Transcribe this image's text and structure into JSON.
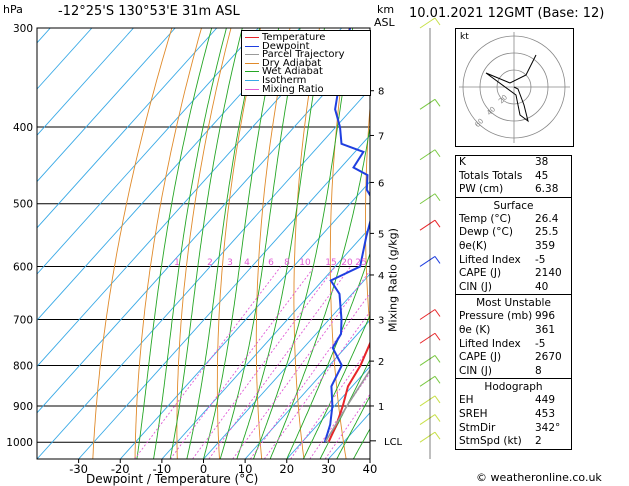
{
  "header": {
    "pressure_unit": "hPa",
    "location": "-12°25'S  130°53'E  31m  ASL",
    "km_label": "km",
    "asl_label": "ASL",
    "date_label": "10.01.2021  12GMT  (Base: 12)"
  },
  "chart_data": {
    "type": "line",
    "xlabel": "Dewpoint / Temperature (°C)",
    "ylabel": "",
    "mixing_ratio_label": "Mixing Ratio (g/kg)",
    "x_ticks": [
      -30,
      -20,
      -10,
      0,
      10,
      20,
      30,
      40
    ],
    "xlim": [
      -40,
      40
    ],
    "y_ticks": [
      300,
      400,
      500,
      600,
      700,
      800,
      900,
      1000
    ],
    "ylim": [
      1050,
      300
    ],
    "y_scale": "log",
    "skew": true,
    "km_ticks": [
      {
        "label": "8",
        "p": 360
      },
      {
        "label": "7",
        "p": 410
      },
      {
        "label": "6",
        "p": 470
      },
      {
        "label": "5",
        "p": 545
      },
      {
        "label": "4",
        "p": 615
      },
      {
        "label": "3",
        "p": 700
      },
      {
        "label": "2",
        "p": 790
      },
      {
        "label": "1",
        "p": 900
      }
    ],
    "lcl_label": "LCL",
    "lcl_pressure": 996,
    "mixing_ratio_values": [
      "1",
      "2",
      "3",
      "4",
      "6",
      "8",
      "10",
      "15",
      "20",
      "25"
    ],
    "legend": [
      {
        "name": "Temperature",
        "color": "#e8262a"
      },
      {
        "name": "Dewpoint",
        "color": "#1f3fe0"
      },
      {
        "name": "Parcel Trajectory",
        "color": "#9a9a9a"
      },
      {
        "name": "Dry Adiabat",
        "color": "#e08a2a"
      },
      {
        "name": "Wet Adiabat",
        "color": "#25a625"
      },
      {
        "name": "Isotherm",
        "color": "#38a9e6"
      },
      {
        "name": "Mixing Ratio",
        "color": "#e05bd5"
      }
    ],
    "series": [
      {
        "name": "Temperature",
        "color": "#e8262a",
        "points": [
          [
            26.4,
            1000
          ],
          [
            24.5,
            950
          ],
          [
            22,
            900
          ],
          [
            19,
            850
          ],
          [
            17.5,
            800
          ],
          [
            15,
            750
          ],
          [
            12,
            700
          ],
          [
            9,
            650
          ],
          [
            6,
            600
          ],
          [
            2,
            550
          ],
          [
            -2,
            500
          ],
          [
            -5.5,
            450
          ],
          [
            -10,
            400
          ],
          [
            -17,
            350
          ],
          [
            -23,
            300
          ]
        ]
      },
      {
        "name": "Dewpoint",
        "color": "#1f3fe0",
        "points": [
          [
            25.5,
            1000
          ],
          [
            23,
            950
          ],
          [
            19.5,
            900
          ],
          [
            15,
            850
          ],
          [
            13,
            800
          ],
          [
            7,
            760
          ],
          [
            6,
            730
          ],
          [
            3,
            700
          ],
          [
            -3,
            650
          ],
          [
            -8,
            625
          ],
          [
            -4,
            600
          ],
          [
            -9,
            550
          ],
          [
            -14,
            500
          ],
          [
            -19,
            480
          ],
          [
            -22,
            460
          ],
          [
            -27,
            450
          ],
          [
            -28,
            430
          ],
          [
            -35,
            420
          ],
          [
            -39,
            400
          ],
          [
            -44,
            380
          ],
          [
            -49,
            350
          ],
          [
            -58,
            300
          ]
        ]
      },
      {
        "name": "Parcel Trajectory",
        "color": "#9a9a9a",
        "points": [
          [
            26.4,
            1000
          ],
          [
            25.5,
            996
          ],
          [
            23,
            900
          ],
          [
            20.5,
            800
          ],
          [
            17.5,
            700
          ],
          [
            14,
            600
          ],
          [
            9,
            500
          ],
          [
            3,
            400
          ],
          [
            -2,
            350
          ],
          [
            -9,
            300
          ]
        ]
      }
    ]
  },
  "hodograph": {
    "label": "kt",
    "ring_labels": [
      "20",
      "40",
      "60"
    ]
  },
  "indices": [
    {
      "label": "K",
      "value": "38"
    },
    {
      "label": "Totals Totals",
      "value": "45"
    },
    {
      "label": "PW (cm)",
      "value": "6.38"
    }
  ],
  "surface": {
    "title": "Surface",
    "rows": [
      {
        "label": "Temp (°C)",
        "value": "26.4"
      },
      {
        "label": "Dewp (°C)",
        "value": "25.5"
      },
      {
        "label": "θe(K)",
        "value": "359"
      },
      {
        "label": "Lifted Index",
        "value": "-5"
      },
      {
        "label": "CAPE (J)",
        "value": "2140"
      },
      {
        "label": "CIN (J)",
        "value": "40"
      }
    ]
  },
  "most_unstable": {
    "title": "Most Unstable",
    "rows": [
      {
        "label": "Pressure (mb)",
        "value": "996"
      },
      {
        "label": "θe (K)",
        "value": "361"
      },
      {
        "label": "Lifted Index",
        "value": "-5"
      },
      {
        "label": "CAPE (J)",
        "value": "2670"
      },
      {
        "label": "CIN (J)",
        "value": "8"
      }
    ]
  },
  "hodograph_table": {
    "title": "Hodograph",
    "rows": [
      {
        "label": "EH",
        "value": "449"
      },
      {
        "label": "SREH",
        "value": "453"
      },
      {
        "label": "StmDir",
        "value": "342°"
      },
      {
        "label": "StmSpd (kt)",
        "value": "2"
      }
    ]
  },
  "footer": {
    "copyright": "© weatheronline.co.uk"
  }
}
